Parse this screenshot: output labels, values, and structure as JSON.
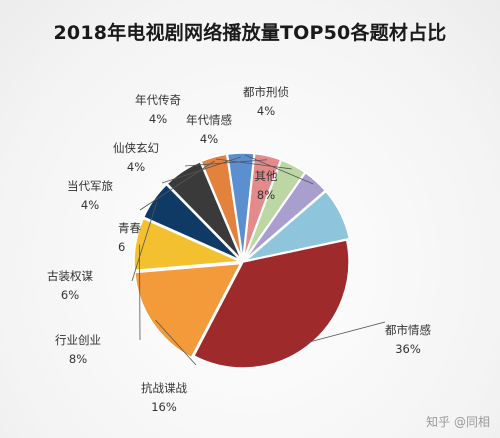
{
  "chart_data": {
    "type": "pie",
    "title": "2018年电视剧网络播放量TOP50各题材占比",
    "slices": [
      {
        "name": "都市情感",
        "value": 36,
        "color": "#9e2a2b",
        "label_pct": "36%"
      },
      {
        "name": "抗战谍战",
        "value": 16,
        "color": "#f39a3a",
        "label_pct": "16%"
      },
      {
        "name": "行业创业",
        "value": 8,
        "color": "#f3c030",
        "label_pct": "8%"
      },
      {
        "name": "古装权谋",
        "value": 6,
        "color": "#0f3a66",
        "label_pct": "6%"
      },
      {
        "name": "青春",
        "value": 6,
        "color": "#3a3a3a",
        "label_pct": "6"
      },
      {
        "name": "当代军旅",
        "value": 4,
        "color": "#e2823d",
        "label_pct": "4%"
      },
      {
        "name": "仙侠玄幻",
        "value": 4,
        "color": "#5b8fcf",
        "label_pct": "4%"
      },
      {
        "name": "年代传奇",
        "value": 4,
        "color": "#e48a8a",
        "label_pct": "4%"
      },
      {
        "name": "年代情感",
        "value": 4,
        "color": "#bcd6a4",
        "label_pct": "4%"
      },
      {
        "name": "都市刑侦",
        "value": 4,
        "color": "#a99fcf",
        "label_pct": "4%"
      },
      {
        "name": "其他",
        "value": 8,
        "color": "#8ec4dc",
        "label_pct": "8%"
      }
    ],
    "legend": "none"
  },
  "watermark": "知乎 @同相"
}
